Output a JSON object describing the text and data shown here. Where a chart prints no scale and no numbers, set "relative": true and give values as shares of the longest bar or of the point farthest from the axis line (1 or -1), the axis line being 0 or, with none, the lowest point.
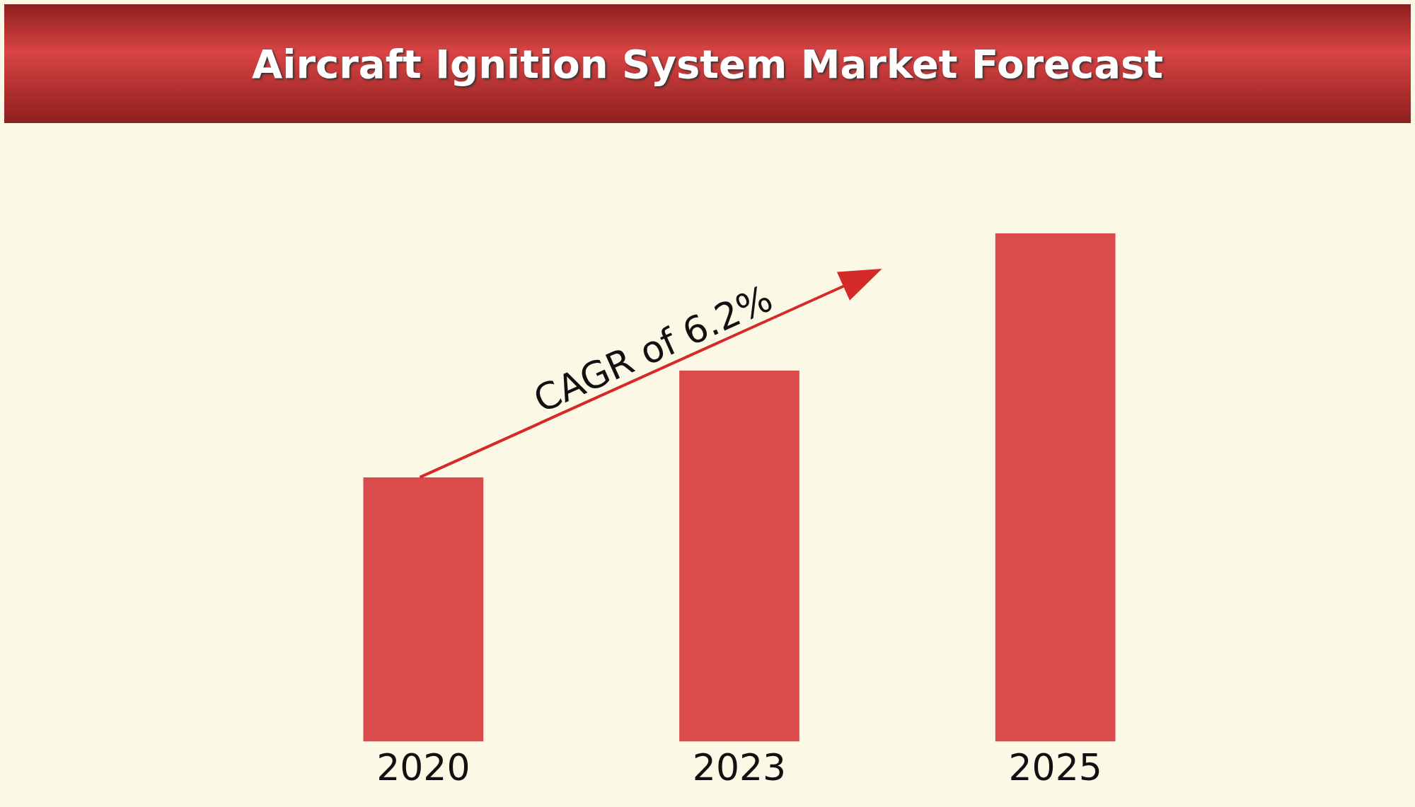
{
  "chart_data": {
    "type": "bar",
    "title": "Aircraft Ignition System Market Forecast",
    "categories": [
      "2020",
      "2023",
      "2025"
    ],
    "values": [
      0.52,
      0.73,
      1
    ],
    "color": "#dc4b4b",
    "relative": true,
    "grid": false,
    "legend": false,
    "annotations": [
      "CAGR of 6.2%"
    ]
  }
}
